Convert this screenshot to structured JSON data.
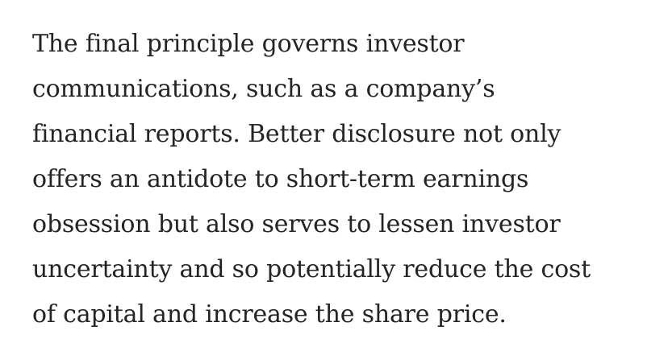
{
  "article": {
    "paragraph_lines": [
      "The final principle governs investor",
      "communications, such as a company’s",
      "financial reports. Better disclosure not only",
      "offers an antidote to short-term earnings",
      "obsession but also serves to lessen investor",
      "uncertainty and so potentially reduce the cost",
      "of capital and increase the share price."
    ]
  },
  "colors": {
    "text": "#242424",
    "background": "#ffffff"
  }
}
